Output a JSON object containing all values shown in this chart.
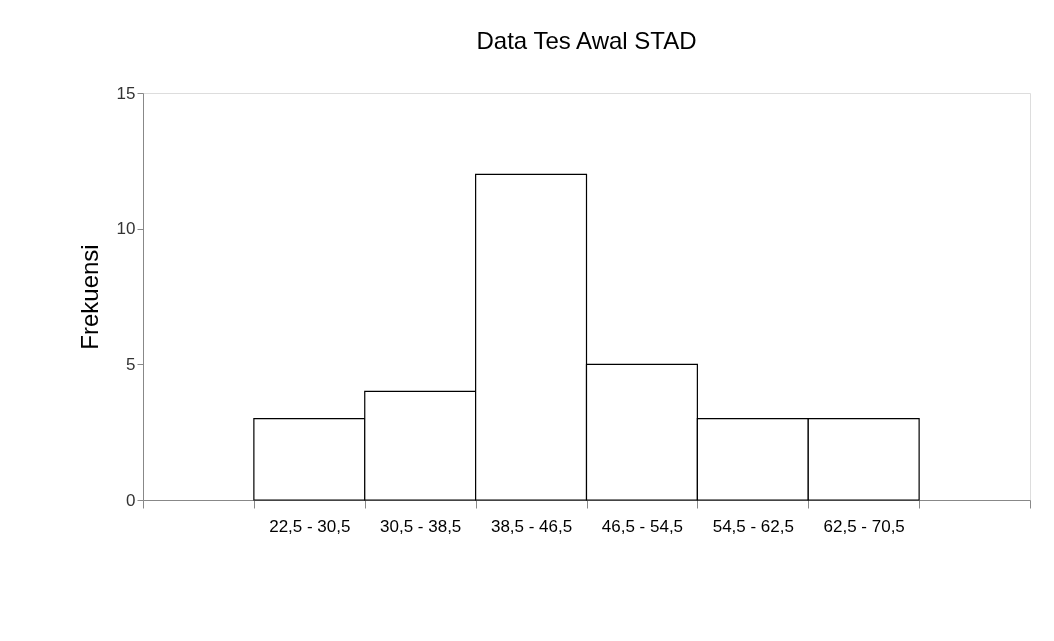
{
  "chart_data": {
    "type": "bar",
    "title": "Data Tes Awal STAD",
    "ylabel": "Frekuensi",
    "categories": [
      null,
      "22,5 - 30,5",
      "30,5 - 38,5",
      "38,5 - 46,5",
      "46,5 - 54,5",
      "54,5 - 62,5",
      "62,5 - 70,5",
      null
    ],
    "values": [
      null,
      3,
      4,
      12,
      5,
      3,
      3,
      null
    ],
    "color": "#ffffff",
    "ylim": [
      0,
      15
    ],
    "yticks": [
      0,
      5,
      10,
      15
    ],
    "grid": false
  }
}
